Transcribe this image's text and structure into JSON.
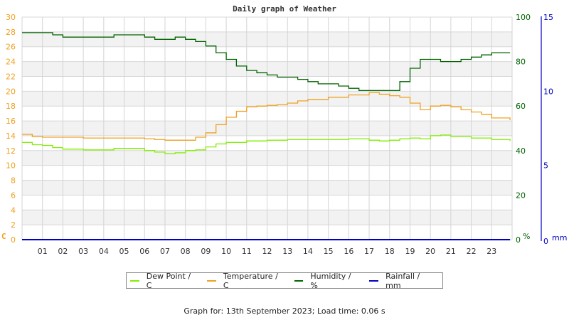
{
  "chart_data": {
    "type": "line",
    "title": "Daily graph of Weather",
    "x_ticks": [
      "01",
      "02",
      "03",
      "04",
      "05",
      "06",
      "07",
      "08",
      "09",
      "10",
      "11",
      "12",
      "13",
      "14",
      "15",
      "16",
      "17",
      "18",
      "19",
      "20",
      "21",
      "22",
      "23"
    ],
    "axes": {
      "left": {
        "label": "C",
        "ticks": [
          0,
          2,
          4,
          6,
          8,
          10,
          12,
          14,
          16,
          18,
          20,
          22,
          24,
          26,
          28,
          30
        ],
        "range": [
          0,
          30
        ],
        "color": "#f0a020"
      },
      "right_humidity": {
        "label": "%",
        "ticks": [
          0,
          20,
          40,
          60,
          80,
          100
        ],
        "range": [
          0,
          100
        ],
        "color": "#006400"
      },
      "right_rain": {
        "label": "mm",
        "ticks": [
          0,
          5,
          10,
          15
        ],
        "range": [
          0,
          15
        ],
        "color": "#0000c0"
      }
    },
    "grid": true,
    "legend_position": "bottom",
    "series": [
      {
        "name": "Dew Point / C",
        "color": "#80ee00",
        "axis": "left",
        "x": [
          0,
          0.5,
          1,
          1.5,
          2,
          3,
          4,
          4.5,
          5,
          6,
          6.5,
          7,
          7.5,
          8,
          8.5,
          9,
          9.5,
          10,
          11,
          12,
          13,
          14,
          15,
          16,
          17,
          17.5,
          18,
          18.5,
          19,
          19.5,
          20,
          20.5,
          21,
          22,
          23,
          23.9
        ],
        "y": [
          13.1,
          12.8,
          12.7,
          12.4,
          12.2,
          12.1,
          12.1,
          12.3,
          12.3,
          12.0,
          11.8,
          11.6,
          11.7,
          12.0,
          12.1,
          12.5,
          12.9,
          13.1,
          13.3,
          13.4,
          13.5,
          13.5,
          13.5,
          13.6,
          13.4,
          13.3,
          13.4,
          13.6,
          13.7,
          13.6,
          14.0,
          14.1,
          13.9,
          13.7,
          13.5,
          13.3
        ]
      },
      {
        "name": "Temperature / C",
        "color": "#f0a020",
        "axis": "left",
        "x": [
          0,
          0.5,
          1,
          2,
          3,
          4,
          5,
          6,
          6.5,
          7,
          7.5,
          8,
          8.5,
          9,
          9.5,
          10,
          10.5,
          11,
          11.5,
          12,
          12.5,
          13,
          13.5,
          14,
          15,
          16,
          17,
          17.5,
          18,
          18.5,
          19,
          19.5,
          20,
          20.5,
          21,
          21.5,
          22,
          22.5,
          23,
          23.9
        ],
        "y": [
          14.2,
          13.9,
          13.8,
          13.8,
          13.7,
          13.7,
          13.7,
          13.6,
          13.5,
          13.4,
          13.4,
          13.4,
          13.8,
          14.4,
          15.5,
          16.5,
          17.3,
          17.9,
          18.0,
          18.1,
          18.2,
          18.4,
          18.7,
          18.9,
          19.2,
          19.5,
          19.8,
          19.6,
          19.4,
          19.2,
          18.4,
          17.5,
          18.0,
          18.1,
          17.9,
          17.5,
          17.2,
          16.9,
          16.4,
          16.1
        ]
      },
      {
        "name": "Humidity / %",
        "color": "#006400",
        "axis": "right_humidity",
        "x": [
          0,
          0.5,
          1,
          1.5,
          2,
          3,
          4,
          4.5,
          5,
          6,
          6.5,
          7,
          7.5,
          8,
          8.5,
          9,
          9.5,
          10,
          10.5,
          11,
          11.5,
          12,
          12.5,
          13,
          13.5,
          14,
          14.5,
          15,
          15.5,
          16,
          16.5,
          17,
          17.5,
          18,
          18.5,
          19,
          19.5,
          20,
          20.5,
          21,
          21.5,
          22,
          22.5,
          23,
          23.9
        ],
        "y": [
          93,
          93,
          93,
          92,
          91,
          91,
          91,
          92,
          92,
          91,
          90,
          90,
          91,
          90,
          89,
          87,
          84,
          81,
          78,
          76,
          75,
          74,
          73,
          73,
          72,
          71,
          70,
          70,
          69,
          68,
          67,
          67,
          67,
          67,
          71,
          77,
          81,
          81,
          80,
          80,
          81,
          82,
          83,
          84,
          84
        ]
      },
      {
        "name": "Rainfall / mm",
        "color": "#0000c0",
        "axis": "right_rain",
        "x": [
          0,
          23.9
        ],
        "y": [
          0,
          0
        ]
      }
    ]
  },
  "title": "Daily graph of Weather",
  "legend": [
    {
      "label": "Dew Point / C",
      "color": "#80ee00"
    },
    {
      "label": "Temperature / C",
      "color": "#f0a020"
    },
    {
      "label": "Humidity / %",
      "color": "#006400"
    },
    {
      "label": "Rainfall / mm",
      "color": "#0000c0"
    }
  ],
  "footer": "Graph for: 13th September 2023; Load time: 0.06 s"
}
